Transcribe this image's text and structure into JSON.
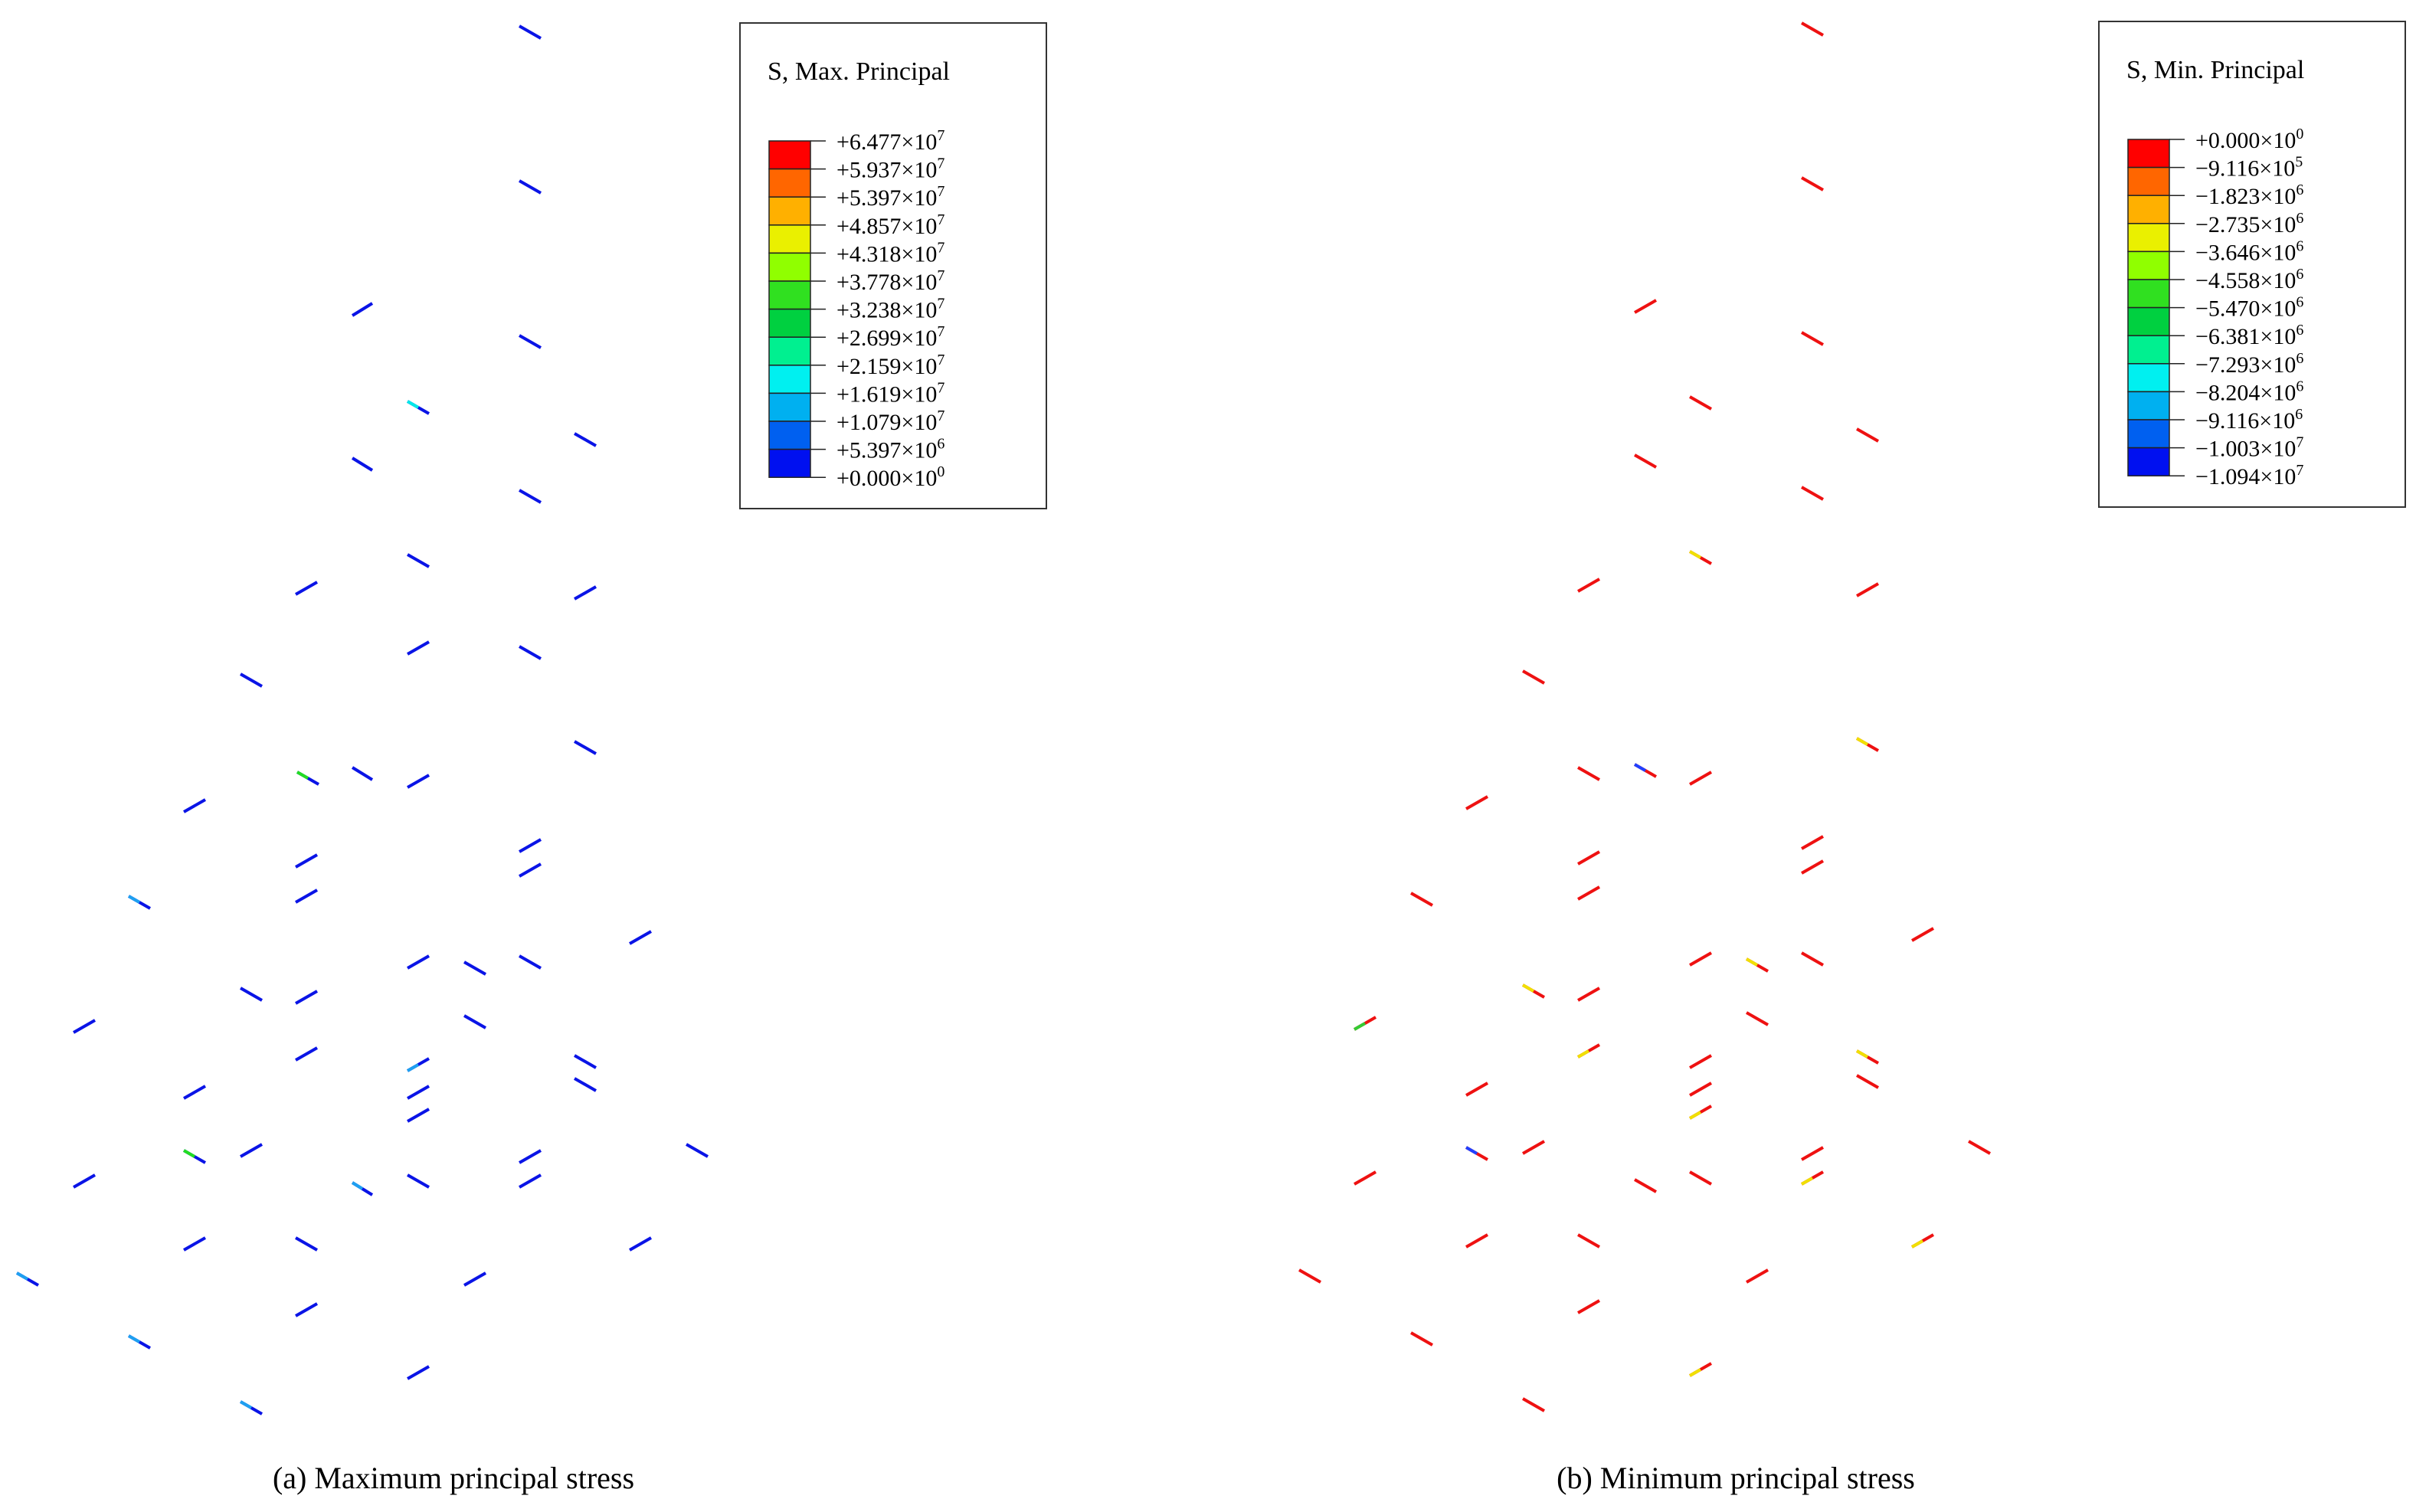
{
  "panels": [
    {
      "id": "a",
      "caption": "(a) Maximum principal stress",
      "legend": {
        "title": "S, Max. Principal",
        "entries": [
          {
            "mantissa": "+6.477",
            "exp": "7"
          },
          {
            "mantissa": "+5.937",
            "exp": "7"
          },
          {
            "mantissa": "+5.397",
            "exp": "7"
          },
          {
            "mantissa": "+4.857",
            "exp": "7"
          },
          {
            "mantissa": "+4.318",
            "exp": "7"
          },
          {
            "mantissa": "+3.778",
            "exp": "7"
          },
          {
            "mantissa": "+3.238",
            "exp": "7"
          },
          {
            "mantissa": "+2.699",
            "exp": "7"
          },
          {
            "mantissa": "+2.159",
            "exp": "7"
          },
          {
            "mantissa": "+1.619",
            "exp": "7"
          },
          {
            "mantissa": "+1.079",
            "exp": "7"
          },
          {
            "mantissa": "+5.397",
            "exp": "6"
          },
          {
            "mantissa": "+0.000",
            "exp": "0"
          }
        ]
      },
      "element_colors": {
        "base": "#0a14e6",
        "cyan_tint": "#1ea0f0",
        "green": "#22dd22",
        "cyan": "#00e8e8"
      }
    },
    {
      "id": "b",
      "caption": "(b) Minimum principal stress",
      "legend": {
        "title": "S, Min. Principal",
        "entries": [
          {
            "mantissa": "+0.000",
            "exp": "0"
          },
          {
            "mantissa": "−9.116",
            "exp": "5"
          },
          {
            "mantissa": "−1.823",
            "exp": "6"
          },
          {
            "mantissa": "−2.735",
            "exp": "6"
          },
          {
            "mantissa": "−3.646",
            "exp": "6"
          },
          {
            "mantissa": "−4.558",
            "exp": "6"
          },
          {
            "mantissa": "−5.470",
            "exp": "6"
          },
          {
            "mantissa": "−6.381",
            "exp": "6"
          },
          {
            "mantissa": "−7.293",
            "exp": "6"
          },
          {
            "mantissa": "−8.204",
            "exp": "6"
          },
          {
            "mantissa": "−9.116",
            "exp": "6"
          },
          {
            "mantissa": "−1.003",
            "exp": "7"
          },
          {
            "mantissa": "−1.094",
            "exp": "7"
          }
        ]
      },
      "element_colors": {
        "base": "#ee1111",
        "yellow": "#f0e000",
        "green": "#33cc33",
        "blue": "#2040ff"
      }
    }
  ],
  "colorbar": [
    "#ff0000",
    "#ff6600",
    "#ffb000",
    "#eaf000",
    "#90ff00",
    "#30e020",
    "#00d040",
    "#00f090",
    "#00f0f0",
    "#00b0f0",
    "#0060f0",
    "#0010f0"
  ]
}
